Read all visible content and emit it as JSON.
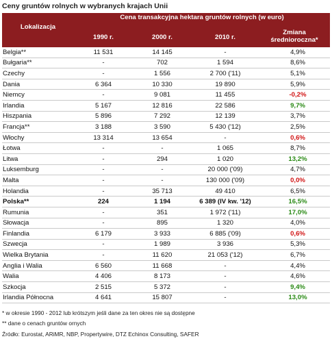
{
  "title": "Ceny gruntów rolnych w wybranych krajach Unii",
  "header": {
    "location": "Lokalizacja",
    "group": "Cena transakcyjna hektara gruntów rolnych (w euro)",
    "col1990": "1990 r.",
    "col2000": "2000 r.",
    "col2010": "2010 r.",
    "change_line1": "Zmiana",
    "change_line2": "średnioroczna*"
  },
  "colors": {
    "header_bg": "#8c1d20",
    "positive_highlight": "#2a8a15",
    "negative_highlight": "#d11414"
  },
  "rows": [
    {
      "name": "Belgia**",
      "v1990": "11 531",
      "v2000": "14 145",
      "v2010": "-",
      "change": "4,9%",
      "style": ""
    },
    {
      "name": "Bułgaria**",
      "v1990": "-",
      "v2000": "702",
      "v2010": "1 594",
      "change": "8,6%",
      "style": ""
    },
    {
      "name": "Czechy",
      "v1990": "-",
      "v2000": "1 556",
      "v2010": "2 700 ('11)",
      "change": "5,1%",
      "style": ""
    },
    {
      "name": "Dania",
      "v1990": "6 364",
      "v2000": "10 330",
      "v2010": "19 890",
      "change": "5,9%",
      "style": ""
    },
    {
      "name": "Niemcy",
      "v1990": "-",
      "v2000": "9 081",
      "v2010": "11 455",
      "change": "-0,2%",
      "style": "red"
    },
    {
      "name": "Irlandia",
      "v1990": "5 167",
      "v2000": "12 816",
      "v2010": "22 586",
      "change": "9,7%",
      "style": "green"
    },
    {
      "name": "Hiszpania",
      "v1990": "5 896",
      "v2000": "7 292",
      "v2010": "12 139",
      "change": "3,7%",
      "style": ""
    },
    {
      "name": "Francja**",
      "v1990": "3 188",
      "v2000": "3 590",
      "v2010": "5 430 ('12)",
      "change": "2,5%",
      "style": ""
    },
    {
      "name": "Włochy",
      "v1990": "13 314",
      "v2000": "13 654",
      "v2010": "-",
      "change": "0,6%",
      "style": "red"
    },
    {
      "name": "Łotwa",
      "v1990": "-",
      "v2000": "-",
      "v2010": "1 065",
      "change": "8,7%",
      "style": ""
    },
    {
      "name": "Litwa",
      "v1990": "-",
      "v2000": "294",
      "v2010": "1 020",
      "change": "13,2%",
      "style": "green"
    },
    {
      "name": "Luksemburg",
      "v1990": "-",
      "v2000": "-",
      "v2010": "20 000 ('09)",
      "change": "4,7%",
      "style": ""
    },
    {
      "name": "Malta",
      "v1990": "-",
      "v2000": "-",
      "v2010": "130 000 ('09)",
      "change": "0,0%",
      "style": "red"
    },
    {
      "name": "Holandia",
      "v1990": "-",
      "v2000": "35 713",
      "v2010": "49 410",
      "change": "6,5%",
      "style": ""
    },
    {
      "name": "Polska**",
      "v1990": "224",
      "v2000": "1 194",
      "v2010": "6 389 (IV kw. '12)",
      "change": "16,5%",
      "style": "green",
      "bold": true
    },
    {
      "name": "Rumunia",
      "v1990": "-",
      "v2000": "351",
      "v2010": "1 972 ('11)",
      "change": "17,0%",
      "style": "green"
    },
    {
      "name": "Słowacja",
      "v1990": "-",
      "v2000": "895",
      "v2010": "1 320",
      "change": "4,0%",
      "style": ""
    },
    {
      "name": "Finlandia",
      "v1990": "6 179",
      "v2000": "3 933",
      "v2010": "6 885 ('09)",
      "change": "0,6%",
      "style": "red"
    },
    {
      "name": "Szwecja",
      "v1990": "-",
      "v2000": "1 989",
      "v2010": "3 936",
      "change": "5,3%",
      "style": ""
    },
    {
      "name": "Wielka Brytania",
      "v1990": "-",
      "v2000": "11 620",
      "v2010": "21 053 ('12)",
      "change": "6,7%",
      "style": ""
    },
    {
      "name": "Anglia i Walia",
      "v1990": "6 560",
      "v2000": "11 668",
      "v2010": "-",
      "change": "4,4%",
      "style": ""
    },
    {
      "name": "Walia",
      "v1990": "4 406",
      "v2000": "8 173",
      "v2010": "-",
      "change": "4,6%",
      "style": ""
    },
    {
      "name": "Szkocja",
      "v1990": "2 515",
      "v2000": "5 372",
      "v2010": "-",
      "change": "9,4%",
      "style": "green"
    },
    {
      "name": "Irlandia Północna",
      "v1990": "4 641",
      "v2000": "15 807",
      "v2010": "-",
      "change": "13,0%",
      "style": "green"
    }
  ],
  "notes": {
    "note1": "* w okresie 1990 - 2012 lub krótszym jeśli dane za ten okres nie są dostępne",
    "note2": "** dane o cenach gruntów ornych",
    "source": "Źródło: Eurostat, ARiMR, NBP, Propertywire, DTZ Echinox Consulting, SAFER"
  }
}
